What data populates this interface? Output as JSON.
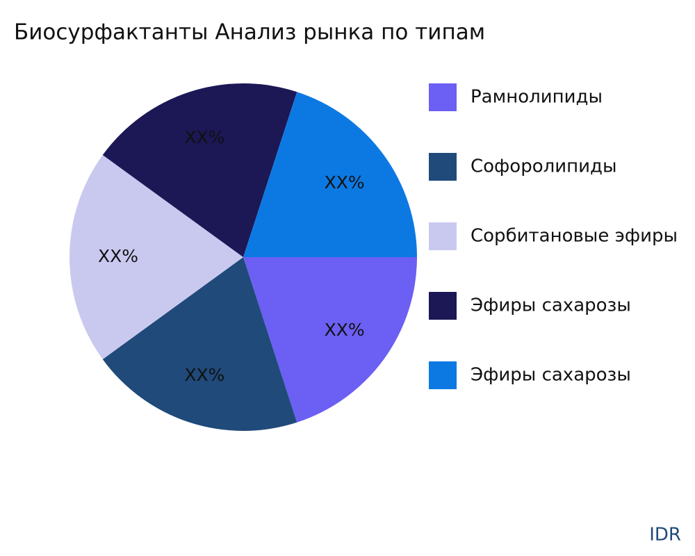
{
  "chart_data": {
    "type": "pie",
    "title": "Биосурфактанты Анализ рынка по типам",
    "categories": [
      "Рамнолипиды",
      "Софоролипиды",
      "Сорбитановые эфиры",
      "Эфиры сахарозы",
      "Эфиры сахарозы"
    ],
    "values": [
      20,
      20,
      20,
      20,
      20
    ],
    "value_labels": [
      "XX%",
      "XX%",
      "XX%",
      "XX%",
      "XX%"
    ],
    "colors": [
      "#6c5ff3",
      "#1f4a7a",
      "#c9c9f0",
      "#1c1755",
      "#0c79e3"
    ],
    "legend": "right",
    "watermark": "IDR"
  }
}
